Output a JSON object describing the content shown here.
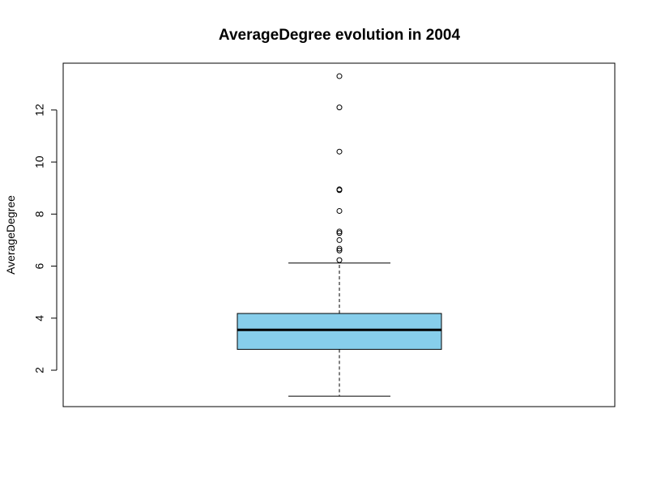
{
  "chart_data": {
    "type": "boxplot",
    "title": "AverageDegree evolution in 2004",
    "xlabel": "",
    "ylabel": "AverageDegree",
    "ylim": [
      0.6,
      13.8
    ],
    "yticks": [
      2,
      4,
      6,
      8,
      10,
      12
    ],
    "grid": false,
    "box": {
      "whisker_low": 1.0,
      "q1": 2.8,
      "median": 3.55,
      "q3": 4.18,
      "whisker_high": 6.12
    },
    "outliers": [
      6.23,
      6.6,
      6.67,
      7.0,
      7.27,
      7.33,
      8.12,
      8.92,
      8.95,
      10.4,
      12.1,
      13.3
    ],
    "colors": {
      "box_fill": "#87CEEB",
      "stroke": "#000000"
    }
  }
}
